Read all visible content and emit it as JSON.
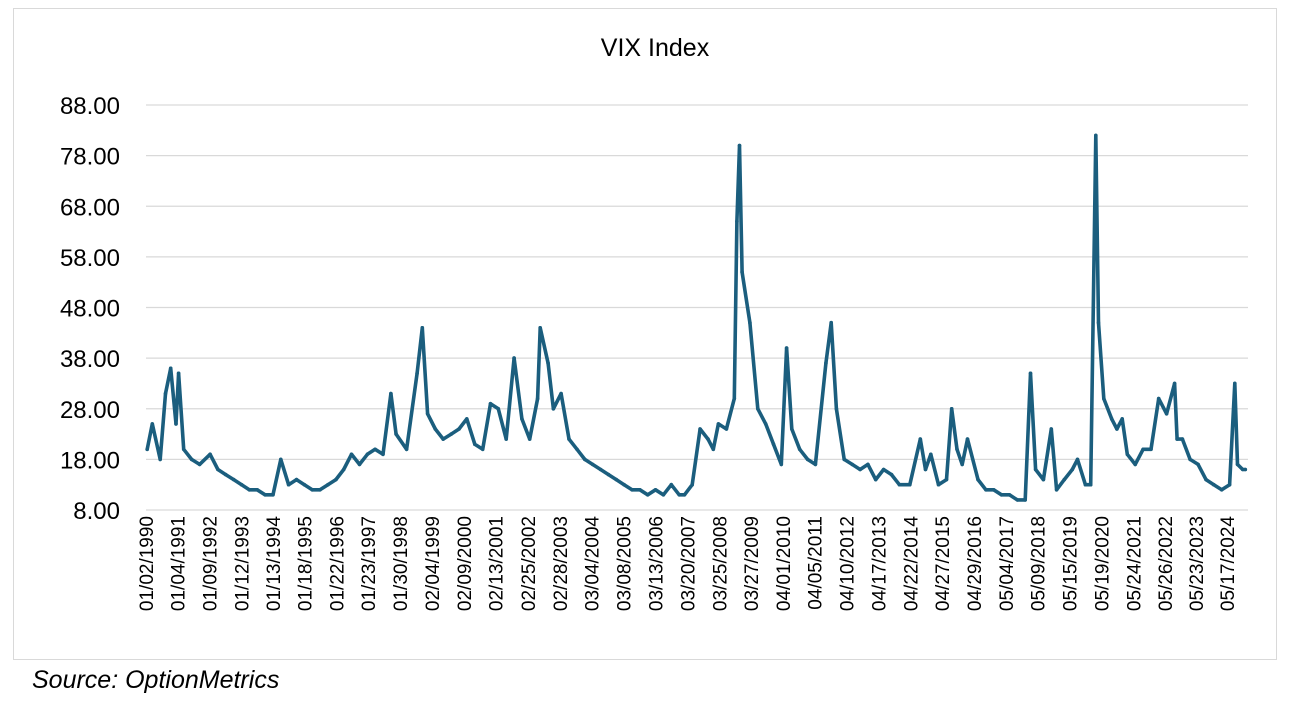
{
  "source_note": "Source: OptionMetrics",
  "colors": {
    "series": "#1b5e7e",
    "grid": "#d9d9d9",
    "text": "#000000"
  },
  "chart_data": {
    "type": "line",
    "title": "VIX Index",
    "xlabel": "",
    "ylabel": "",
    "ylim": [
      8,
      88
    ],
    "yticks": [
      8,
      18,
      28,
      38,
      48,
      58,
      68,
      78,
      88
    ],
    "ytick_labels": [
      "8.00",
      "18.00",
      "28.00",
      "38.00",
      "48.00",
      "58.00",
      "68.00",
      "78.00",
      "88.00"
    ],
    "xtick_labels": [
      "01/02/1990",
      "01/04/1991",
      "01/09/1992",
      "01/12/1993",
      "01/13/1994",
      "01/18/1995",
      "01/22/1996",
      "01/23/1997",
      "01/30/1998",
      "02/04/1999",
      "02/09/2000",
      "02/13/2001",
      "02/25/2002",
      "02/28/2003",
      "03/04/2004",
      "03/08/2005",
      "03/13/2006",
      "03/20/2007",
      "03/25/2008",
      "03/27/2009",
      "04/01/2010",
      "04/05/2011",
      "04/10/2012",
      "04/17/2013",
      "04/22/2014",
      "04/27/2015",
      "04/29/2016",
      "05/04/2017",
      "05/09/2018",
      "05/15/2019",
      "05/19/2020",
      "05/24/2021",
      "05/26/2022",
      "05/23/2023",
      "05/17/2024"
    ],
    "grid": true,
    "legend": "none",
    "series": [
      {
        "name": "",
        "x": [
          "1990-01",
          "1990-03",
          "1990-06",
          "1990-08",
          "1990-10",
          "1990-12",
          "1991-01",
          "1991-03",
          "1991-06",
          "1991-09",
          "1992-01",
          "1992-04",
          "1992-07",
          "1992-10",
          "1993-01",
          "1993-04",
          "1993-07",
          "1993-10",
          "1994-01",
          "1994-04",
          "1994-07",
          "1994-10",
          "1995-01",
          "1995-04",
          "1995-07",
          "1995-10",
          "1996-01",
          "1996-04",
          "1996-07",
          "1996-10",
          "1997-01",
          "1997-04",
          "1997-07",
          "1997-10",
          "1997-12",
          "1998-04",
          "1998-08",
          "1998-10",
          "1998-12",
          "1999-03",
          "1999-06",
          "1999-09",
          "1999-12",
          "2000-03",
          "2000-06",
          "2000-09",
          "2000-12",
          "2001-03",
          "2001-06",
          "2001-09",
          "2001-12",
          "2002-03",
          "2002-06",
          "2002-07",
          "2002-10",
          "2002-12",
          "2003-03",
          "2003-06",
          "2003-09",
          "2003-12",
          "2004-03",
          "2004-06",
          "2004-09",
          "2004-12",
          "2005-03",
          "2005-06",
          "2005-09",
          "2005-12",
          "2006-03",
          "2006-06",
          "2006-09",
          "2006-12",
          "2007-02",
          "2007-05",
          "2007-08",
          "2007-11",
          "2008-01",
          "2008-03",
          "2008-06",
          "2008-09",
          "2008-10",
          "2008-11",
          "2008-12",
          "2009-03",
          "2009-06",
          "2009-09",
          "2009-12",
          "2010-03",
          "2010-05",
          "2010-07",
          "2010-10",
          "2011-01",
          "2011-04",
          "2011-08",
          "2011-10",
          "2011-12",
          "2012-03",
          "2012-06",
          "2012-09",
          "2012-12",
          "2013-03",
          "2013-06",
          "2013-09",
          "2013-12",
          "2014-04",
          "2014-08",
          "2014-10",
          "2014-12",
          "2015-03",
          "2015-06",
          "2015-08",
          "2015-10",
          "2015-12",
          "2016-02",
          "2016-06",
          "2016-09",
          "2016-12",
          "2017-03",
          "2017-06",
          "2017-09",
          "2017-12",
          "2018-02",
          "2018-04",
          "2018-07",
          "2018-10",
          "2018-12",
          "2019-03",
          "2019-06",
          "2019-08",
          "2019-11",
          "2020-01",
          "2020-03",
          "2020-04",
          "2020-06",
          "2020-09",
          "2020-11",
          "2021-01",
          "2021-03",
          "2021-06",
          "2021-09",
          "2021-12",
          "2022-03",
          "2022-06",
          "2022-09",
          "2022-10",
          "2022-12",
          "2023-03",
          "2023-06",
          "2023-09",
          "2023-12",
          "2024-03",
          "2024-06",
          "2024-08",
          "2024-09",
          "2024-11",
          "2024-12"
        ],
        "values": [
          20,
          25,
          18,
          31,
          36,
          25,
          35,
          20,
          18,
          17,
          19,
          16,
          15,
          14,
          13,
          12,
          12,
          11,
          11,
          18,
          13,
          14,
          13,
          12,
          12,
          13,
          14,
          16,
          19,
          17,
          19,
          20,
          19,
          31,
          23,
          20,
          35,
          44,
          27,
          24,
          22,
          23,
          24,
          26,
          21,
          20,
          29,
          28,
          22,
          38,
          26,
          22,
          30,
          44,
          37,
          28,
          31,
          22,
          20,
          18,
          17,
          16,
          15,
          14,
          13,
          12,
          12,
          11,
          12,
          11,
          13,
          11,
          11,
          13,
          24,
          22,
          20,
          25,
          24,
          30,
          65,
          80,
          55,
          45,
          28,
          25,
          21,
          17,
          40,
          24,
          20,
          18,
          17,
          37,
          45,
          28,
          18,
          17,
          16,
          17,
          14,
          16,
          15,
          13,
          13,
          22,
          16,
          19,
          13,
          14,
          28,
          20,
          17,
          22,
          14,
          12,
          12,
          11,
          11,
          10,
          10,
          35,
          16,
          14,
          24,
          12,
          14,
          16,
          18,
          13,
          13,
          82,
          45,
          30,
          26,
          24,
          26,
          19,
          17,
          20,
          20,
          30,
          27,
          33,
          22,
          22,
          18,
          17,
          14,
          13,
          12,
          13,
          33,
          17,
          16,
          16
        ]
      }
    ]
  }
}
